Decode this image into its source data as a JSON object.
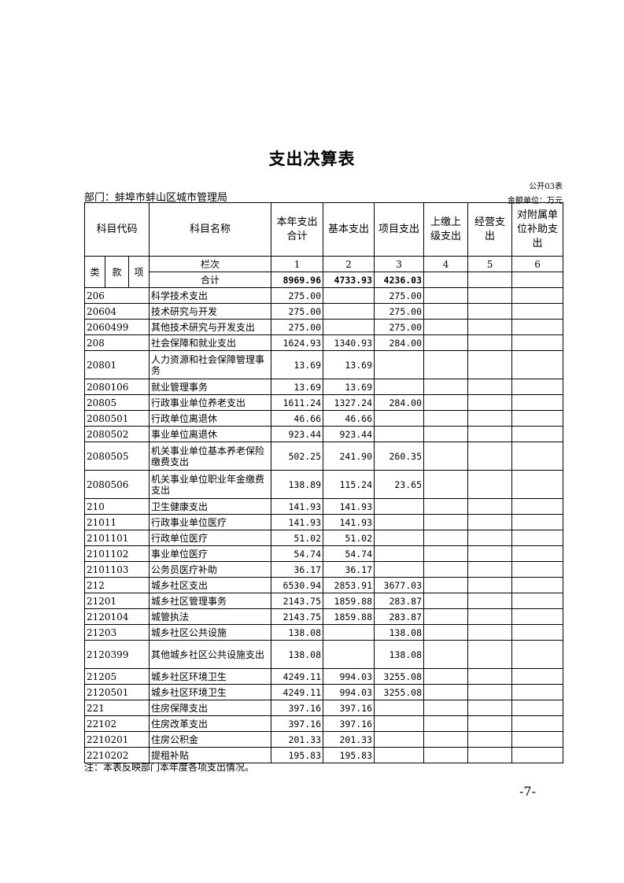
{
  "title": "支出决算表",
  "table_no": "公开03表",
  "department": "部门：蚌埠市蚌山区城市管理局",
  "unit": "金额单位：万元",
  "headers": {
    "code": "科目代码",
    "name": "科目名称",
    "c1": "本年支出合计",
    "c2": "基本支出",
    "c3": "项目支出",
    "c4": "上缴上级支出",
    "c5": "经营支出",
    "c6": "对附属单位补助支出",
    "lei": "类",
    "kuan": "款",
    "xiang": "项",
    "lanci": "栏次",
    "n1": "1",
    "n2": "2",
    "n3": "3",
    "n4": "4",
    "n5": "5",
    "n6": "6"
  },
  "total": {
    "label": "合计",
    "c1": "8969.96",
    "c2": "4733.93",
    "c3": "4236.03"
  },
  "rows": [
    {
      "code": "206",
      "name": "科学技术支出",
      "c1": "275.00",
      "c2": "",
      "c3": "275.00"
    },
    {
      "code": "20604",
      "name": "技术研究与开发",
      "c1": "275.00",
      "c2": "",
      "c3": "275.00"
    },
    {
      "code": "2060499",
      "name": "其他技术研究与开发支出",
      "c1": "275.00",
      "c2": "",
      "c3": "275.00"
    },
    {
      "code": "208",
      "name": "社会保障和就业支出",
      "c1": "1624.93",
      "c2": "1340.93",
      "c3": "284.00"
    },
    {
      "code": "20801",
      "name": "人力资源和社会保障管理事务",
      "c1": "13.69",
      "c2": "13.69",
      "c3": "",
      "tall": true
    },
    {
      "code": "2080106",
      "name": "就业管理事务",
      "c1": "13.69",
      "c2": "13.69",
      "c3": ""
    },
    {
      "code": "20805",
      "name": "行政事业单位养老支出",
      "c1": "1611.24",
      "c2": "1327.24",
      "c3": "284.00"
    },
    {
      "code": "2080501",
      "name": "行政单位离退休",
      "c1": "46.66",
      "c2": "46.66",
      "c3": ""
    },
    {
      "code": "2080502",
      "name": "事业单位离退休",
      "c1": "923.44",
      "c2": "923.44",
      "c3": ""
    },
    {
      "code": "2080505",
      "name": "机关事业单位基本养老保险缴费支出",
      "c1": "502.25",
      "c2": "241.90",
      "c3": "260.35",
      "tall": true
    },
    {
      "code": "2080506",
      "name": "机关事业单位职业年金缴费支出",
      "c1": "138.89",
      "c2": "115.24",
      "c3": "23.65",
      "tall": true
    },
    {
      "code": "210",
      "name": "卫生健康支出",
      "c1": "141.93",
      "c2": "141.93",
      "c3": ""
    },
    {
      "code": "21011",
      "name": "行政事业单位医疗",
      "c1": "141.93",
      "c2": "141.93",
      "c3": ""
    },
    {
      "code": "2101101",
      "name": "行政单位医疗",
      "c1": "51.02",
      "c2": "51.02",
      "c3": ""
    },
    {
      "code": "2101102",
      "name": "事业单位医疗",
      "c1": "54.74",
      "c2": "54.74",
      "c3": ""
    },
    {
      "code": "2101103",
      "name": "公务员医疗补助",
      "c1": "36.17",
      "c2": "36.17",
      "c3": ""
    },
    {
      "code": "212",
      "name": "城乡社区支出",
      "c1": "6530.94",
      "c2": "2853.91",
      "c3": "3677.03"
    },
    {
      "code": "21201",
      "name": "城乡社区管理事务",
      "c1": "2143.75",
      "c2": "1859.88",
      "c3": "283.87"
    },
    {
      "code": "2120104",
      "name": "城管执法",
      "c1": "2143.75",
      "c2": "1859.88",
      "c3": "283.87"
    },
    {
      "code": "21203",
      "name": "城乡社区公共设施",
      "c1": "138.08",
      "c2": "",
      "c3": "138.08"
    },
    {
      "code": "2120399",
      "name": "其他城乡社区公共设施支出",
      "c1": "138.08",
      "c2": "",
      "c3": "138.08",
      "tall": true
    },
    {
      "code": "21205",
      "name": "城乡社区环境卫生",
      "c1": "4249.11",
      "c2": "994.03",
      "c3": "3255.08"
    },
    {
      "code": "2120501",
      "name": "城乡社区环境卫生",
      "c1": "4249.11",
      "c2": "994.03",
      "c3": "3255.08"
    },
    {
      "code": "221",
      "name": "住房保障支出",
      "c1": "397.16",
      "c2": "397.16",
      "c3": ""
    },
    {
      "code": "22102",
      "name": "住房改革支出",
      "c1": "397.16",
      "c2": "397.16",
      "c3": ""
    },
    {
      "code": "2210201",
      "name": "住房公积金",
      "c1": "201.33",
      "c2": "201.33",
      "c3": ""
    },
    {
      "code": "2210202",
      "name": "提租补贴",
      "c1": "195.83",
      "c2": "195.83",
      "c3": ""
    }
  ],
  "note": "注：本表反映部门本年度各项支出情况。",
  "page_number": "-7-"
}
